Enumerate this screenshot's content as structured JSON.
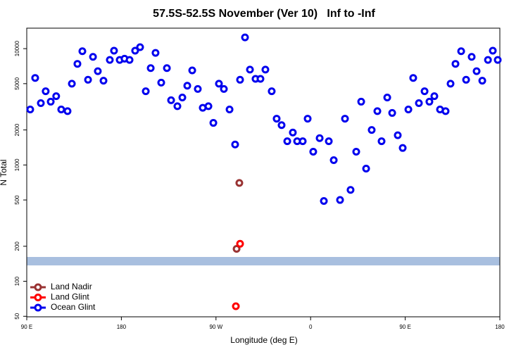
{
  "chart_data": {
    "type": "scatter",
    "title": "57.5S-52.5S November (Ver 10)   Inf to -Inf",
    "x_label": "Longitude (deg E)",
    "y_label": "N Total",
    "log_y": true,
    "legend_position": "lower left",
    "xlim": [
      90,
      540
    ],
    "ylim": [
      49.5,
      15000
    ],
    "xticks": [
      {
        "value": 90,
        "label": "90 E"
      },
      180,
      {
        "value": 270,
        "label": "90 W"
      },
      {
        "value": 360,
        "label": "0"
      },
      {
        "value": 450,
        "label": "90 E"
      },
      {
        "value": 540,
        "label": "180"
      }
    ],
    "yticks": [
      50,
      100,
      200,
      500,
      1000,
      2000,
      5000,
      10000
    ],
    "series": [
      {
        "name": "Land Nadir",
        "color": "#993333",
        "x": [
          292.2,
          289.6
        ],
        "values": [
          700,
          190
        ]
      },
      {
        "name": "Land Glint",
        "color": "#ff0000",
        "x": [
          292.9,
          288.9
        ],
        "values": [
          210,
          61
        ]
      },
      {
        "name": "Ocean Glint",
        "color": "#0000ee",
        "x": [
          93.3,
          98,
          103.4,
          108,
          112.8,
          118,
          122.8,
          128.8,
          132.9,
          138.2,
          142.9,
          148.3,
          153,
          157.6,
          163,
          169,
          173,
          178.4,
          183,
          187.8,
          193.1,
          197.8,
          203.2,
          207.9,
          212.5,
          217.9,
          223.3,
          227.3,
          233.3,
          238,
          242.7,
          247.4,
          252.7,
          257.4,
          262.8,
          267.5,
          272.8,
          277.5,
          282.9,
          288.2,
          292.9,
          297.6,
          302.3,
          307.6,
          312.3,
          317,
          323,
          327.7,
          332.4,
          337.8,
          343.1,
          347.2,
          352.5,
          357.2,
          362.5,
          368.6,
          372.6,
          377.3,
          382,
          388,
          392.7,
          398,
          403.4,
          408.1,
          412.8,
          418.1,
          423.5,
          427.5,
          432.9,
          437.6,
          442.9,
          447.6,
          453,
          457.6,
          463,
          468.4,
          473,
          477.7,
          483.1,
          488.4,
          493.1,
          497.8,
          503.2,
          507.9,
          513.2,
          517.9,
          523.3,
          528.7,
          533.3,
          538
        ],
        "values": [
          3000,
          5600,
          3400,
          4300,
          3500,
          3900,
          3000,
          2900,
          5000,
          7400,
          9500,
          5400,
          8500,
          6400,
          5300,
          8000,
          9600,
          8000,
          8200,
          8000,
          9600,
          10300,
          4300,
          6800,
          9200,
          5100,
          6800,
          3600,
          3200,
          3800,
          4800,
          6500,
          4500,
          3100,
          3200,
          2300,
          5000,
          4500,
          3000,
          1500,
          5400,
          12500,
          6600,
          5500,
          5500,
          6600,
          4300,
          2500,
          2200,
          1600,
          1900,
          1600,
          1600,
          2500,
          1300,
          1700,
          490,
          1600,
          1100,
          500,
          2500,
          610,
          1300,
          3500,
          930,
          2000,
          2900,
          1600,
          3800,
          2800,
          1800,
          1400,
          3000,
          5600,
          3400,
          4300,
          3500,
          3900,
          3000,
          2900,
          5000,
          7400,
          9500,
          5400,
          8500,
          6400,
          5300,
          8000,
          9600,
          8000
        ]
      }
    ]
  }
}
